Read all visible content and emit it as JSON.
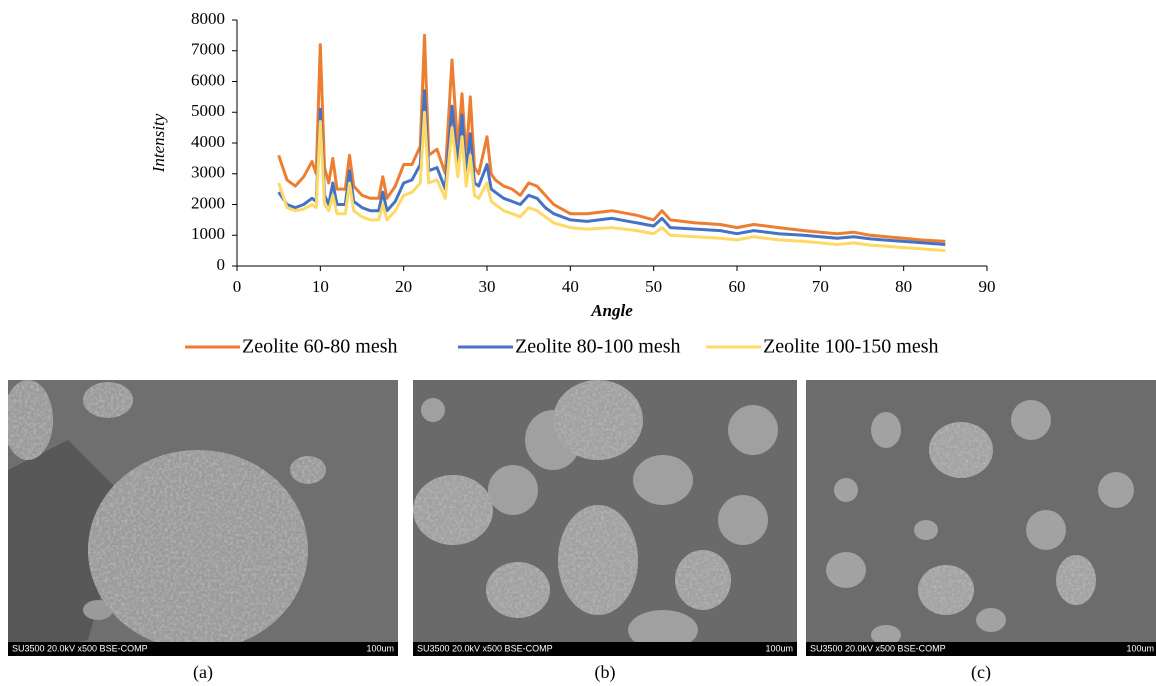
{
  "chart_data": {
    "type": "line",
    "y_label": "Intensity",
    "x_label": "Angle",
    "x": [
      5,
      6,
      7,
      8,
      9,
      9.5,
      10,
      10.5,
      11,
      11.5,
      12,
      13,
      13.5,
      14,
      15,
      16,
      17,
      17.5,
      18,
      19,
      20,
      21,
      22,
      22.5,
      23,
      24,
      25,
      25.8,
      26.5,
      27,
      27.5,
      28,
      28.5,
      29,
      30,
      30.5,
      31,
      32,
      33,
      34,
      35,
      36,
      37,
      38,
      40,
      42,
      45,
      48,
      50,
      51,
      52,
      55,
      58,
      60,
      62,
      65,
      68,
      70,
      72,
      74,
      76,
      78,
      80,
      82,
      85
    ],
    "series": [
      {
        "name": "Zeolite 60-80 mesh",
        "color": "#ed7d31",
        "values": [
          3600,
          2800,
          2600,
          2900,
          3400,
          3000,
          7200,
          3200,
          2700,
          3500,
          2500,
          2500,
          3600,
          2600,
          2300,
          2200,
          2200,
          2900,
          2200,
          2600,
          3300,
          3300,
          3900,
          7500,
          3600,
          3800,
          3000,
          6700,
          3800,
          5600,
          3500,
          5500,
          3200,
          3000,
          4200,
          3000,
          2800,
          2600,
          2500,
          2300,
          2700,
          2600,
          2300,
          2000,
          1700,
          1700,
          1800,
          1650,
          1500,
          1800,
          1500,
          1400,
          1350,
          1250,
          1350,
          1250,
          1150,
          1100,
          1050,
          1100,
          1000,
          950,
          900,
          850,
          800
        ]
      },
      {
        "name": "Zeolite 80-100 mesh",
        "color": "#4472c4",
        "values": [
          2400,
          2000,
          1900,
          2000,
          2200,
          2100,
          5100,
          2300,
          2000,
          2700,
          2000,
          2000,
          3100,
          2100,
          1900,
          1800,
          1800,
          2400,
          1800,
          2100,
          2700,
          2800,
          3300,
          5700,
          3100,
          3200,
          2500,
          5200,
          3300,
          4900,
          3000,
          4300,
          2700,
          2600,
          3300,
          2500,
          2400,
          2200,
          2100,
          2000,
          2300,
          2200,
          1900,
          1700,
          1500,
          1450,
          1550,
          1400,
          1300,
          1550,
          1250,
          1200,
          1150,
          1050,
          1150,
          1050,
          1000,
          950,
          900,
          950,
          880,
          840,
          800,
          760,
          700
        ]
      },
      {
        "name": "Zeolite 100-150 mesh",
        "color": "#ffd966",
        "values": [
          2700,
          1900,
          1800,
          1850,
          2000,
          1900,
          4700,
          2000,
          1800,
          2300,
          1700,
          1700,
          2700,
          1800,
          1600,
          1500,
          1500,
          2000,
          1500,
          1800,
          2300,
          2400,
          2700,
          5000,
          2700,
          2800,
          2200,
          4500,
          2900,
          4200,
          2600,
          3600,
          2300,
          2200,
          2700,
          2100,
          2000,
          1800,
          1700,
          1600,
          1900,
          1800,
          1600,
          1400,
          1250,
          1200,
          1250,
          1150,
          1050,
          1250,
          1000,
          950,
          900,
          850,
          950,
          850,
          800,
          750,
          700,
          750,
          680,
          640,
          600,
          560,
          500
        ]
      }
    ],
    "xlim": [
      0,
      90
    ],
    "xticks": [
      0,
      10,
      20,
      30,
      40,
      50,
      60,
      70,
      80,
      90
    ],
    "ylim": [
      0,
      8000
    ],
    "yticks": [
      0,
      1000,
      2000,
      3000,
      4000,
      5000,
      6000,
      7000,
      8000
    ]
  },
  "panels": [
    {
      "info": "SU3500 20.0kV x500 BSE-COMP",
      "scale": "100um",
      "caption": "(a)"
    },
    {
      "info": "SU3500 20.0kV x500 BSE-COMP",
      "scale": "100um",
      "caption": "(b)"
    },
    {
      "info": "SU3500 20.0kV x500 BSE-COMP",
      "scale": "100um",
      "caption": "(c)"
    }
  ]
}
